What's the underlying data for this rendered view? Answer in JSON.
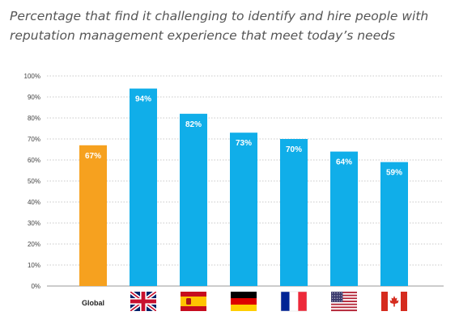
{
  "chart_data": {
    "type": "bar",
    "title_line1": "Percentage that find it challenging to identify and hire people with",
    "title_line2": "reputation management experience that meet today’s needs",
    "categories": [
      "Global",
      "United Kingdom",
      "Spain",
      "Germany",
      "France",
      "United States",
      "Canada"
    ],
    "category_labels": [
      "Global",
      "",
      "",
      "",
      "",
      "",
      ""
    ],
    "category_icons": [
      "",
      "uk-flag-icon",
      "spain-flag-icon",
      "germany-flag-icon",
      "france-flag-icon",
      "us-flag-icon",
      "canada-flag-icon"
    ],
    "values": [
      67,
      94,
      82,
      73,
      70,
      64,
      59
    ],
    "data_labels": [
      "67%",
      "94%",
      "82%",
      "73%",
      "70%",
      "64%",
      "59%"
    ],
    "ylim": [
      0,
      100
    ],
    "yticks": [
      "0%",
      "10%",
      "20%",
      "30%",
      "40%",
      "50%",
      "60%",
      "70%",
      "80%",
      "90%",
      "100%"
    ],
    "grid": "horizontal dotted",
    "legend": "none"
  },
  "colors": {
    "global_bar": "#f6a11f",
    "country_bar": "#10aee9",
    "grid": "#c8c8c8",
    "axis": "#9a9a9a"
  }
}
